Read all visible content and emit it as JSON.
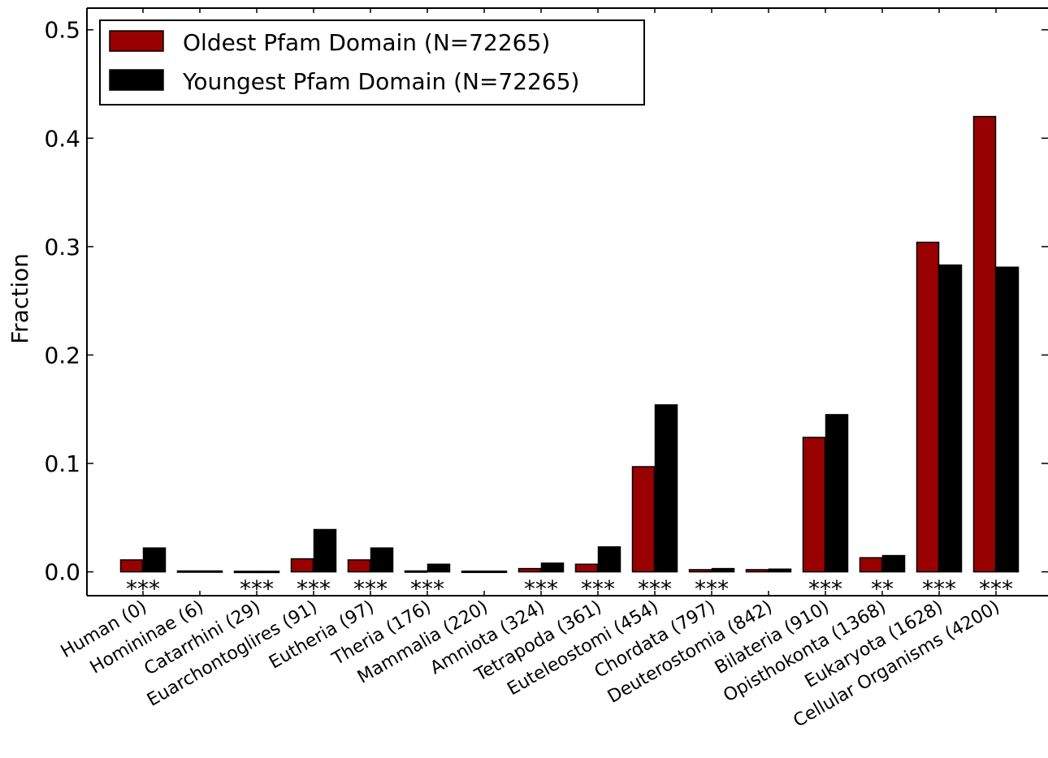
{
  "chart_data": {
    "type": "bar",
    "title": "",
    "xlabel": "",
    "ylabel": "Fraction",
    "ylim": [
      -0.022,
      0.52
    ],
    "yticks": [
      0.0,
      0.1,
      0.2,
      0.3,
      0.4,
      0.5
    ],
    "ytick_labels": [
      "0.0",
      "0.1",
      "0.2",
      "0.3",
      "0.4",
      "0.5"
    ],
    "grid": false,
    "legend_position": "top-left",
    "categories": [
      "Human (0)",
      "Homininae (6)",
      "Catarrhini (29)",
      "Euarchontoglires (91)",
      "Eutheria (97)",
      "Theria (176)",
      "Mammalia (220)",
      "Amniota (324)",
      "Tetrapoda (361)",
      "Euteleostomi (454)",
      "Chordata (797)",
      "Deuterostomia (842)",
      "Bilateria (910)",
      "Opisthokonta (1368)",
      "Eukaryota (1628)",
      "Cellular Organisms (4200)"
    ],
    "series": [
      {
        "name": "Oldest Pfam Domain (N=72265)",
        "color": "#990000",
        "values": [
          0.011,
          0.0008,
          0.0005,
          0.012,
          0.011,
          0.0008,
          0.0006,
          0.003,
          0.007,
          0.097,
          0.002,
          0.002,
          0.124,
          0.013,
          0.304,
          0.42
        ]
      },
      {
        "name": "Youngest Pfam Domain (N=72265)",
        "color": "#000000",
        "values": [
          0.022,
          0.0008,
          0.0005,
          0.039,
          0.022,
          0.007,
          0.0006,
          0.008,
          0.023,
          0.154,
          0.003,
          0.0025,
          0.145,
          0.015,
          0.283,
          0.281
        ]
      }
    ],
    "significance": [
      "***",
      "",
      "***",
      "***",
      "***",
      "***",
      "",
      "***",
      "***",
      "***",
      "***",
      "",
      "***",
      "**",
      "***",
      "***"
    ]
  }
}
